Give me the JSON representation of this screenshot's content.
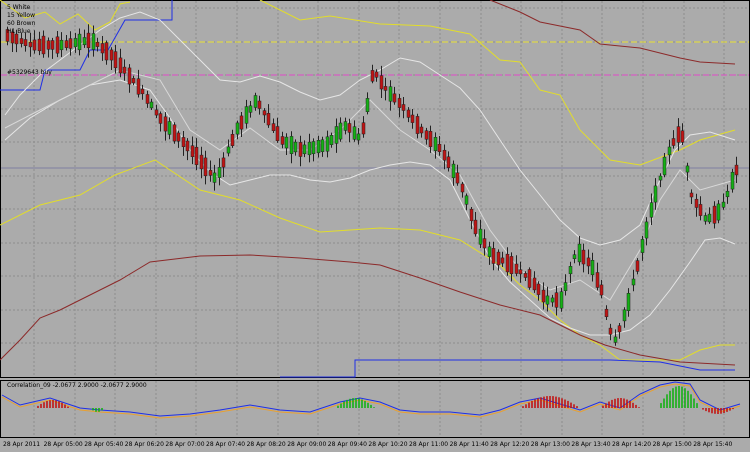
{
  "legend": [
    "5 White",
    "15 Yellow",
    "60 Brown",
    "H1 Blue"
  ],
  "order_label": "#5329643 buy",
  "indicator": {
    "title": "Correlation_09 -2.0677 2.9000 -2.0677 2.9000"
  },
  "colors": {
    "background": "#ababab",
    "grid": "#8e8e8e",
    "bull": "#15b015",
    "bear": "#c01515",
    "white": "#e6e6e6",
    "yellow": "#e2dd2a",
    "brown": "#8c2a2a",
    "blue": "#1f2fe6",
    "buy_line": "#e04ac8",
    "level_line": "#e8e230"
  },
  "x_labels": [
    "28 Apr 2011",
    "28 Apr 05:00",
    "28 Apr 05:40",
    "28 Apr 06:20",
    "28 Apr 07:00",
    "28 Apr 07:40",
    "28 Apr 08:20",
    "28 Apr 09:00",
    "28 Apr 09:40",
    "28 Apr 10:20",
    "28 Apr 11:00",
    "28 Apr 11:40",
    "28 Apr 12:20",
    "28 Apr 13:00",
    "28 Apr 13:40",
    "28 Apr 14:20",
    "28 Apr 15:00",
    "28 Apr 15:40"
  ]
}
